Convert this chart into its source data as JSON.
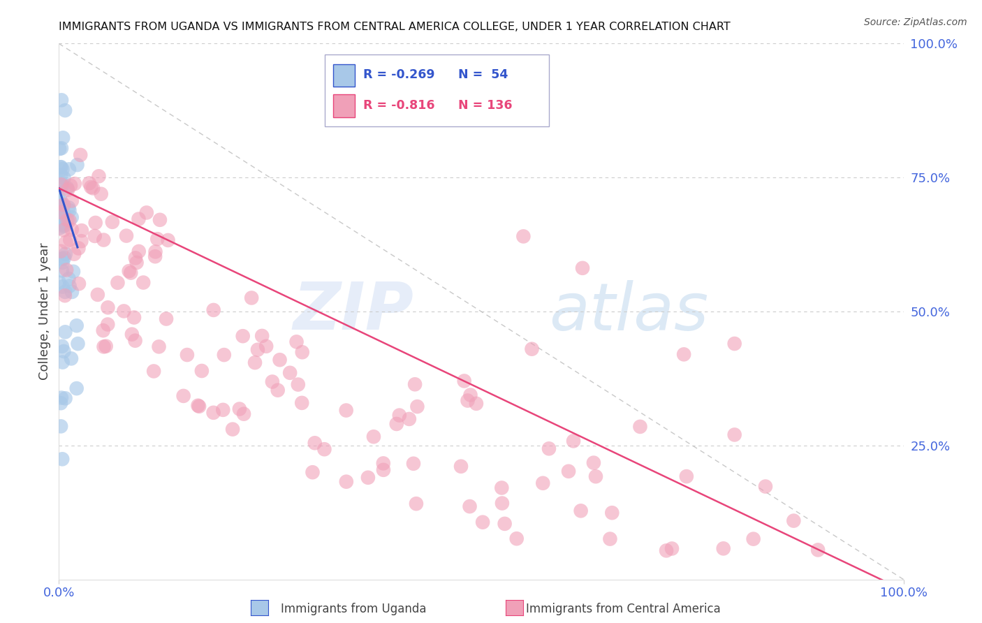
{
  "title": "IMMIGRANTS FROM UGANDA VS IMMIGRANTS FROM CENTRAL AMERICA COLLEGE, UNDER 1 YEAR CORRELATION CHART",
  "source": "Source: ZipAtlas.com",
  "ylabel": "College, Under 1 year",
  "legend_label1": "Immigrants from Uganda",
  "legend_label2": "Immigrants from Central America",
  "legend_R1": "R = -0.269",
  "legend_N1": "N =  54",
  "legend_R2": "R = -0.816",
  "legend_N2": "N = 136",
  "color_uganda": "#a8c8e8",
  "color_uganda_line": "#3355cc",
  "color_central": "#f0a0b8",
  "color_central_line": "#e8457a",
  "color_diagonal": "#bbbbbb",
  "color_right_axis": "#4466dd",
  "watermark_color": "#c5d8f0",
  "xlim": [
    0.0,
    1.0
  ],
  "ylim": [
    0.0,
    1.0
  ]
}
